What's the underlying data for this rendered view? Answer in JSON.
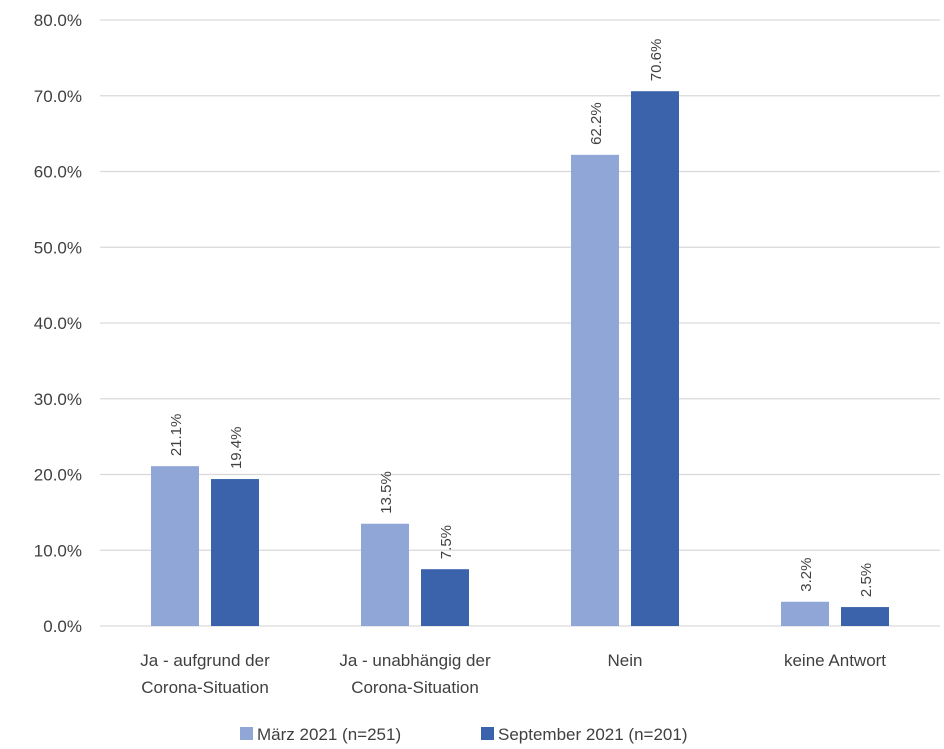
{
  "chart_data": {
    "type": "bar",
    "categories": [
      [
        "Ja - aufgrund der",
        "Corona-Situation"
      ],
      [
        "Ja - unabhängig der",
        "Corona-Situation"
      ],
      [
        "Nein"
      ],
      [
        "keine Antwort"
      ]
    ],
    "series": [
      {
        "name": "März 2021 (n=251)",
        "color": "#8FA6D6",
        "values": [
          21.1,
          13.5,
          62.2,
          3.2
        ],
        "labels": [
          "21.1%",
          "13.5%",
          "62.2%",
          "3.2%"
        ]
      },
      {
        "name": "September 2021 (n=201)",
        "color": "#3A63AC",
        "values": [
          19.4,
          7.5,
          70.6,
          2.5
        ],
        "labels": [
          "19.4%",
          "7.5%",
          "70.6%",
          "2.5%"
        ]
      }
    ],
    "yticks": [
      "0.0%",
      "10.0%",
      "20.0%",
      "30.0%",
      "40.0%",
      "50.0%",
      "60.0%",
      "70.0%",
      "80.0%"
    ],
    "ylim": [
      0,
      80
    ],
    "grid": true,
    "legend_position": "bottom",
    "gridline_color": "#D9D9D9"
  }
}
